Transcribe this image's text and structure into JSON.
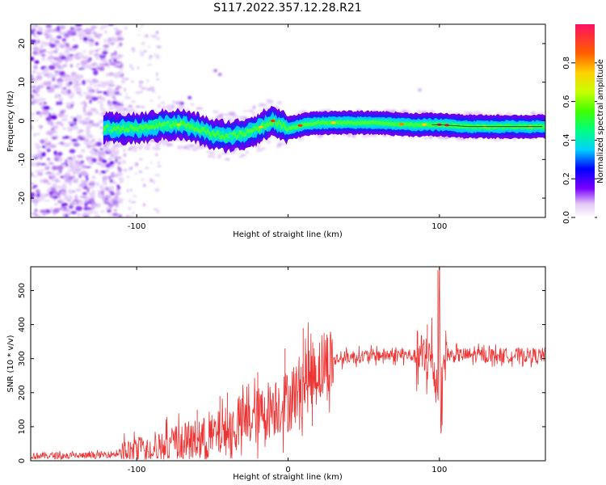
{
  "figure": {
    "title": "S117.2022.357.12.28.R21"
  },
  "chart_data": [
    {
      "type": "heatmap",
      "title": "",
      "xlabel": "Height of straight line (km)",
      "ylabel": "Frequency (Hz)",
      "xlim": [
        -170,
        170
      ],
      "ylim": [
        -25,
        25
      ],
      "xticks": [
        -100,
        0,
        100
      ],
      "xtick_labels": [
        "-100",
        "",
        "100"
      ],
      "yticks": [
        -20,
        -10,
        0,
        10,
        20
      ],
      "ridge": {
        "x": [
          -120,
          -100,
          -90,
          -80,
          -70,
          -60,
          -50,
          -40,
          -30,
          -20,
          -10,
          0,
          10,
          20,
          40,
          60,
          80,
          85,
          90,
          95,
          100,
          120,
          140,
          165
        ],
        "y": [
          -2,
          -2,
          -1.5,
          -1,
          -1,
          -2,
          -3.5,
          -4,
          -3.5,
          -2,
          0,
          -2,
          -1,
          -0.5,
          -0.5,
          -0.5,
          -1,
          -1,
          -1,
          -1,
          -1,
          -1.5,
          -1.5,
          -1.5
        ]
      },
      "colorbar": {
        "label": "Normalized spectral amplitude",
        "range": [
          0,
          1
        ],
        "ticks": [
          0,
          0.2,
          0.4,
          0.6,
          0.8
        ],
        "tick_labels": [
          "0.0",
          "0.2",
          "0.4",
          "0.6",
          "0.8"
        ]
      }
    },
    {
      "type": "line",
      "title": "",
      "xlabel": "Height of straight line (km)",
      "ylabel": "SNR (10 * v/v)",
      "xlim": [
        -170,
        170
      ],
      "ylim": [
        0,
        570
      ],
      "xticks": [
        -100,
        0,
        100
      ],
      "yticks": [
        0,
        100,
        200,
        300,
        400,
        500
      ],
      "color": "#ee3333",
      "series": [
        {
          "x": [
            -170,
            -130,
            -115,
            -110,
            -100,
            -90,
            -80,
            -70,
            -60,
            -50,
            -40,
            -30,
            -20,
            -10,
            0,
            5,
            10,
            15,
            20,
            30,
            40,
            60,
            80,
            85,
            90,
            95,
            97,
            99,
            100,
            101,
            103,
            110,
            130,
            150,
            170
          ],
          "y": [
            15,
            15,
            20,
            25,
            30,
            40,
            50,
            55,
            60,
            70,
            90,
            110,
            130,
            160,
            175,
            200,
            230,
            250,
            270,
            295,
            305,
            310,
            310,
            305,
            300,
            300,
            250,
            200,
            560,
            100,
            310,
            310,
            310,
            310,
            310
          ]
        }
      ]
    }
  ]
}
